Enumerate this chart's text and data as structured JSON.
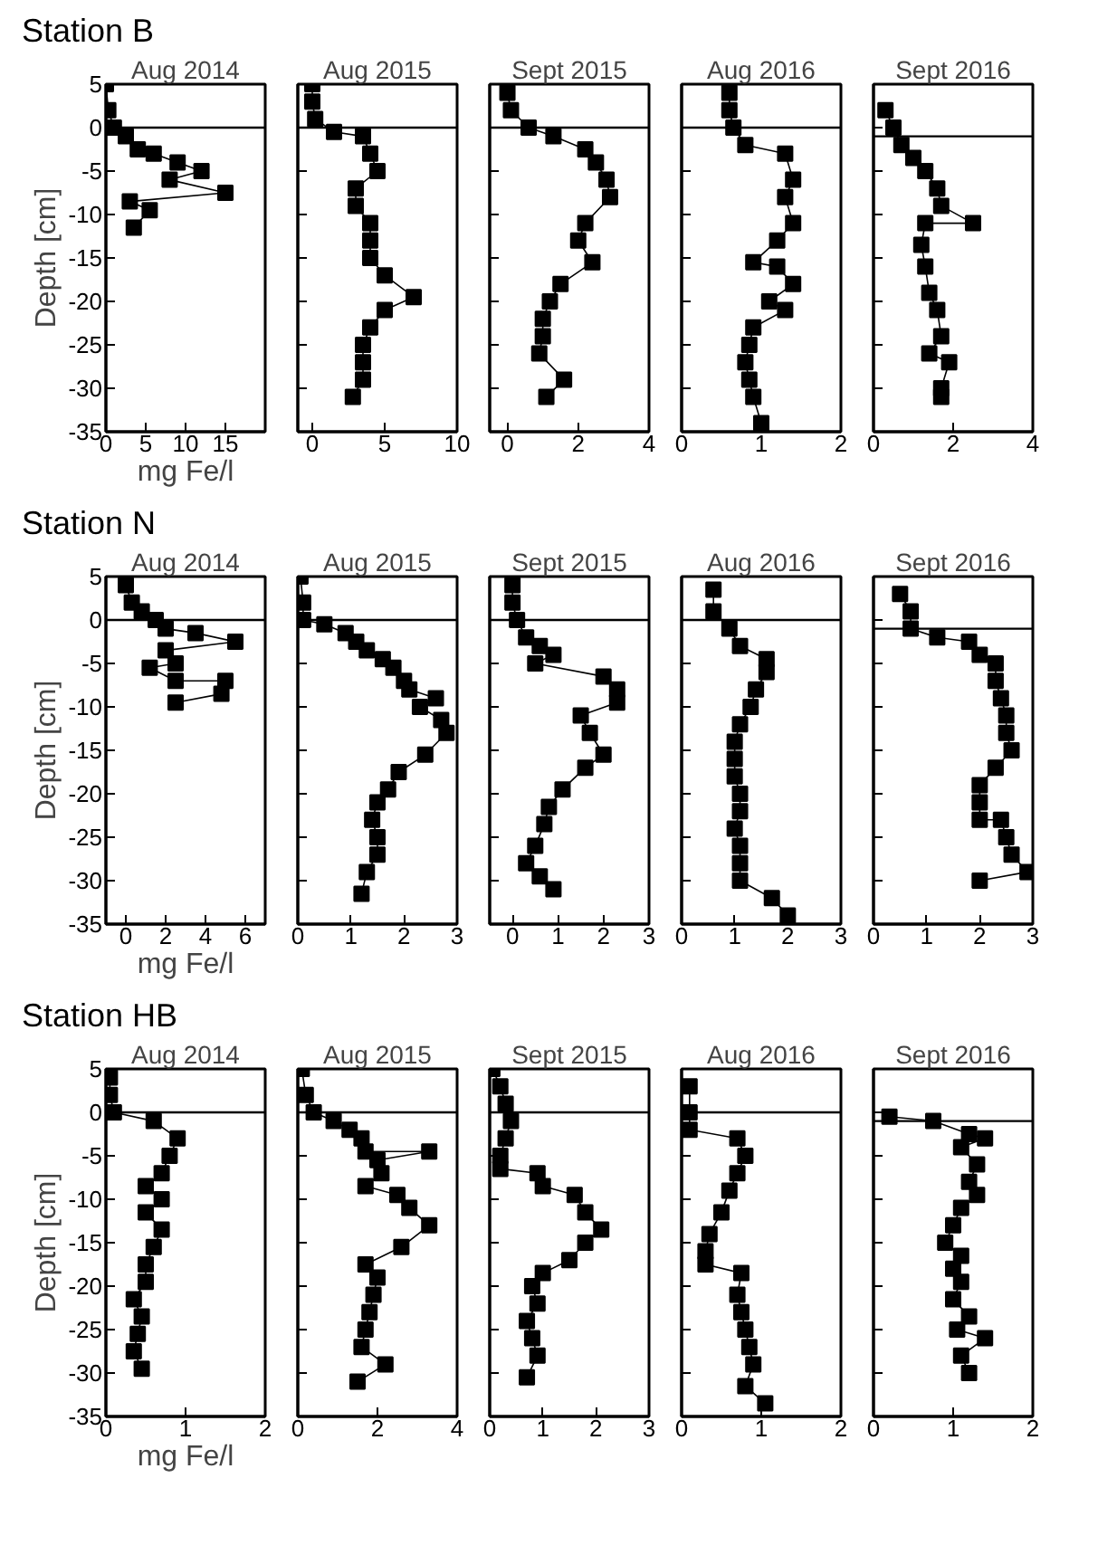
{
  "chart_data": [
    {
      "type": "line",
      "title": "Aug 2014",
      "annotations": [
        "Station B"
      ],
      "ylabel": "Depth [cm]",
      "xlabel": "mg Fe/l",
      "marker": "square",
      "xlim": [
        0,
        20
      ],
      "xticks": [
        0,
        5,
        10,
        15
      ],
      "ylim": [
        -35,
        5
      ],
      "yticks": [
        5,
        0,
        -5,
        -10,
        -15,
        -20,
        -25,
        -30,
        -35
      ],
      "ref_lines": [
        {
          "axis": "y",
          "value": 0
        }
      ],
      "series": [
        {
          "color": "#000000",
          "x": [
            0,
            0.3,
            1,
            2.5,
            4,
            6,
            9,
            12,
            8,
            15,
            3,
            5.5,
            3.5
          ],
          "values": [
            5,
            2,
            0,
            -1,
            -2.5,
            -3,
            -4,
            -5,
            -6,
            -7.5,
            -8.5,
            -9.5,
            -11.5
          ]
        }
      ]
    },
    {
      "type": "line",
      "title": "Aug 2015",
      "marker": "square",
      "tick_labels": "x",
      "xlim": [
        -1,
        10
      ],
      "xticks": [
        0,
        5,
        10
      ],
      "ylim": [
        -35,
        5
      ],
      "yticks": [
        5,
        0,
        -5,
        -10,
        -15,
        -20,
        -25,
        -30,
        -35
      ],
      "ref_lines": [
        {
          "axis": "y",
          "value": 0
        }
      ],
      "series": [
        {
          "color": "#000000",
          "x": [
            0,
            0,
            0.2,
            1.5,
            3.5,
            4,
            4.5,
            3,
            3,
            4,
            4,
            4,
            5,
            7,
            5,
            4,
            3.5,
            3.5,
            3.5,
            2.8
          ],
          "values": [
            5,
            3,
            1,
            -0.5,
            -1,
            -3,
            -5,
            -7,
            -9,
            -11,
            -13,
            -15,
            -17,
            -19.5,
            -21,
            -23,
            -25,
            -27,
            -29,
            -31
          ]
        }
      ]
    },
    {
      "type": "line",
      "title": "Sept 2015",
      "marker": "square",
      "tick_labels": "x",
      "xlim": [
        -0.5,
        4
      ],
      "xticks": [
        0,
        2,
        4
      ],
      "ylim": [
        -35,
        5
      ],
      "yticks": [
        5,
        0,
        -5,
        -10,
        -15,
        -20,
        -25,
        -30,
        -35
      ],
      "ref_lines": [
        {
          "axis": "y",
          "value": 0
        }
      ],
      "series": [
        {
          "color": "#000000",
          "x": [
            0,
            0.1,
            0.6,
            1.3,
            2.2,
            2.5,
            2.8,
            2.9,
            2.2,
            2,
            2.4,
            1.5,
            1.2,
            1,
            1,
            0.9,
            1.6,
            1.1
          ],
          "values": [
            4,
            2,
            0,
            -1,
            -2.5,
            -4,
            -6,
            -8,
            -11,
            -13,
            -15.5,
            -18,
            -20,
            -22,
            -24,
            -26,
            -29,
            -31
          ]
        }
      ]
    },
    {
      "type": "line",
      "title": "Aug 2016",
      "marker": "square",
      "tick_labels": "x",
      "xlim": [
        0,
        2
      ],
      "xticks": [
        0,
        1,
        2
      ],
      "ylim": [
        -35,
        5
      ],
      "yticks": [
        5,
        0,
        -5,
        -10,
        -15,
        -20,
        -25,
        -30,
        -35
      ],
      "ref_lines": [
        {
          "axis": "y",
          "value": 0
        }
      ],
      "series": [
        {
          "color": "#000000",
          "x": [
            0.6,
            0.6,
            0.65,
            0.8,
            1.3,
            1.4,
            1.3,
            1.4,
            1.2,
            0.9,
            1.2,
            1.4,
            1.1,
            1.3,
            0.9,
            0.85,
            0.8,
            0.85,
            0.9,
            1
          ],
          "values": [
            4,
            2,
            0,
            -2,
            -3,
            -6,
            -8,
            -11,
            -13,
            -15.5,
            -16,
            -18,
            -20,
            -21,
            -23,
            -25,
            -27,
            -29,
            -31,
            -34
          ]
        }
      ]
    },
    {
      "type": "line",
      "title": "Sept 2016",
      "marker": "square",
      "tick_labels": "x",
      "xlim": [
        0,
        4
      ],
      "xticks": [
        0,
        2,
        4
      ],
      "ylim": [
        -35,
        5
      ],
      "yticks": [
        5,
        0,
        -5,
        -10,
        -15,
        -20,
        -25,
        -30,
        -35
      ],
      "ref_lines": [
        {
          "axis": "y",
          "value": -1
        }
      ],
      "series": [
        {
          "color": "#000000",
          "x": [
            0.3,
            0.5,
            0.7,
            1,
            1.3,
            1.6,
            1.7,
            2.5,
            1.3,
            1.2,
            1.3,
            1.4,
            1.6,
            1.7,
            1.4,
            1.9,
            1.7,
            1.7
          ],
          "values": [
            2,
            0,
            -2,
            -3.5,
            -5,
            -7,
            -9,
            -11,
            -11,
            -13.5,
            -16,
            -19,
            -21,
            -24,
            -26,
            -27,
            -30,
            -31
          ]
        }
      ]
    },
    {
      "type": "line",
      "title": "Aug 2014",
      "annotations": [
        "Station N"
      ],
      "ylabel": "Depth [cm]",
      "xlabel": "mg Fe/l",
      "marker": "square",
      "xlim": [
        -1,
        7
      ],
      "xticks": [
        0,
        2,
        4,
        6
      ],
      "ylim": [
        -35,
        5
      ],
      "yticks": [
        5,
        0,
        -5,
        -10,
        -15,
        -20,
        -25,
        -30,
        -35
      ],
      "ref_lines": [
        {
          "axis": "y",
          "value": 0
        }
      ],
      "series": [
        {
          "color": "#000000",
          "x": [
            0,
            0.3,
            0.8,
            1.5,
            2,
            3.5,
            5.5,
            2,
            2.5,
            1.2,
            2.5,
            5,
            4.8,
            2.5
          ],
          "values": [
            4,
            2,
            1,
            0,
            -1,
            -1.5,
            -2.5,
            -3.5,
            -5,
            -5.5,
            -7,
            -7,
            -8.5,
            -9.5
          ]
        }
      ]
    },
    {
      "type": "line",
      "title": "Aug 2015",
      "marker": "square",
      "tick_labels": "x",
      "xlim": [
        0,
        3
      ],
      "xticks": [
        0,
        1,
        2,
        3
      ],
      "ylim": [
        -35,
        5
      ],
      "yticks": [
        5,
        0,
        -5,
        -10,
        -15,
        -20,
        -25,
        -30,
        -35
      ],
      "ref_lines": [
        {
          "axis": "y",
          "value": 0
        }
      ],
      "series": [
        {
          "color": "#000000",
          "x": [
            0.05,
            0.1,
            0.1,
            0.5,
            0.9,
            1.1,
            1.3,
            1.6,
            1.8,
            2,
            2.1,
            2.6,
            2.3,
            2.7,
            2.8,
            2.4,
            1.9,
            1.7,
            1.5,
            1.4,
            1.5,
            1.5,
            1.3,
            1.2
          ],
          "values": [
            5,
            2,
            0,
            -0.5,
            -1.5,
            -2.5,
            -3.5,
            -4.5,
            -5.5,
            -7,
            -8,
            -9,
            -10,
            -11.5,
            -13,
            -15.5,
            -17.5,
            -19.5,
            -21,
            -23,
            -25,
            -27,
            -29,
            -31.5
          ]
        }
      ]
    },
    {
      "type": "line",
      "title": "Sept 2015",
      "marker": "square",
      "tick_labels": "x",
      "xlim": [
        -0.5,
        3
      ],
      "xticks": [
        0,
        1,
        2,
        3
      ],
      "ylim": [
        -35,
        5
      ],
      "yticks": [
        5,
        0,
        -5,
        -10,
        -15,
        -20,
        -25,
        -30,
        -35
      ],
      "ref_lines": [
        {
          "axis": "y",
          "value": 0
        }
      ],
      "series": [
        {
          "color": "#000000",
          "x": [
            0,
            0,
            0.1,
            0.3,
            0.6,
            0.9,
            0.5,
            2,
            2.3,
            2.3,
            1.5,
            1.7,
            2,
            1.6,
            1.1,
            0.8,
            0.7,
            0.5,
            0.3,
            0.6,
            0.9
          ],
          "values": [
            4,
            2,
            0,
            -2,
            -3,
            -4,
            -5,
            -6.5,
            -8,
            -9.5,
            -11,
            -13,
            -15.5,
            -17,
            -19.5,
            -21.5,
            -23.5,
            -26,
            -28,
            -29.5,
            -31
          ]
        }
      ]
    },
    {
      "type": "line",
      "title": "Aug 2016",
      "marker": "square",
      "tick_labels": "x",
      "xlim": [
        0,
        3
      ],
      "xticks": [
        0,
        1,
        2,
        3
      ],
      "ylim": [
        -35,
        5
      ],
      "yticks": [
        5,
        0,
        -5,
        -10,
        -15,
        -20,
        -25,
        -30,
        -35
      ],
      "ref_lines": [
        {
          "axis": "y",
          "value": 0
        }
      ],
      "series": [
        {
          "color": "#000000",
          "x": [
            0.6,
            0.6,
            0.9,
            1.1,
            1.6,
            1.6,
            1.4,
            1.3,
            1.1,
            1,
            1,
            1,
            1.1,
            1.1,
            1,
            1.1,
            1.1,
            1.1,
            1.7,
            2
          ],
          "values": [
            3.5,
            1,
            -1,
            -3,
            -4.5,
            -6,
            -8,
            -10,
            -12,
            -14,
            -16,
            -18,
            -20,
            -22,
            -24,
            -26,
            -28,
            -30,
            -32,
            -34
          ]
        }
      ]
    },
    {
      "type": "line",
      "title": "Sept 2016",
      "marker": "square",
      "tick_labels": "x",
      "xlim": [
        0,
        3
      ],
      "xticks": [
        0,
        1,
        2,
        3
      ],
      "ylim": [
        -35,
        5
      ],
      "yticks": [
        5,
        0,
        -5,
        -10,
        -15,
        -20,
        -25,
        -30,
        -35
      ],
      "ref_lines": [
        {
          "axis": "y",
          "value": -1
        }
      ],
      "series": [
        {
          "color": "#000000",
          "x": [
            0.5,
            0.7,
            0.7,
            1.2,
            1.8,
            2,
            2.3,
            2.3,
            2.4,
            2.5,
            2.5,
            2.6,
            2.3,
            2,
            2,
            2,
            2.4,
            2.5,
            2.6,
            2.9,
            2
          ],
          "values": [
            3,
            1,
            -1,
            -2,
            -2.5,
            -4,
            -5,
            -7,
            -9,
            -11,
            -13,
            -15,
            -17,
            -19,
            -21,
            -23,
            -23,
            -25,
            -27,
            -29,
            -30
          ]
        }
      ]
    },
    {
      "type": "line",
      "title": "Aug 2014",
      "annotations": [
        "Station HB"
      ],
      "ylabel": "Depth [cm]",
      "xlabel": "mg Fe/l",
      "marker": "square",
      "xlim": [
        0,
        2
      ],
      "xticks": [
        0,
        1,
        2
      ],
      "ylim": [
        -35,
        5
      ],
      "yticks": [
        5,
        0,
        -5,
        -10,
        -15,
        -20,
        -25,
        -30,
        -35
      ],
      "ref_lines": [
        {
          "axis": "y",
          "value": 0
        }
      ],
      "series": [
        {
          "color": "#000000",
          "x": [
            0.05,
            0.05,
            0.1,
            0.6,
            0.9,
            0.8,
            0.7,
            0.5,
            0.7,
            0.5,
            0.7,
            0.6,
            0.5,
            0.5,
            0.35,
            0.45,
            0.4,
            0.35,
            0.45
          ],
          "values": [
            4,
            2,
            0,
            -1,
            -3,
            -5,
            -7,
            -8.5,
            -10,
            -11.5,
            -13.5,
            -15.5,
            -17.5,
            -19.5,
            -21.5,
            -23.5,
            -25.5,
            -27.5,
            -29.5
          ]
        }
      ]
    },
    {
      "type": "line",
      "title": "Aug 2015",
      "marker": "square",
      "tick_labels": "x",
      "xlim": [
        0,
        4
      ],
      "xticks": [
        0,
        2,
        4
      ],
      "ylim": [
        -35,
        5
      ],
      "yticks": [
        5,
        0,
        -5,
        -10,
        -15,
        -20,
        -25,
        -30,
        -35
      ],
      "ref_lines": [
        {
          "axis": "y",
          "value": 0
        }
      ],
      "series": [
        {
          "color": "#000000",
          "x": [
            0.1,
            0.2,
            0.4,
            0.9,
            1.3,
            1.6,
            1.7,
            3.3,
            2,
            2.1,
            1.7,
            2.5,
            2.8,
            3.3,
            2.6,
            1.7,
            2,
            1.9,
            1.8,
            1.7,
            1.6,
            2.2,
            1.5
          ],
          "values": [
            5,
            2,
            0,
            -1,
            -2,
            -3,
            -4.5,
            -4.5,
            -5.5,
            -7,
            -8.5,
            -9.5,
            -11,
            -13,
            -15.5,
            -17.5,
            -19,
            -21,
            -23,
            -25,
            -27,
            -29,
            -31
          ]
        }
      ]
    },
    {
      "type": "line",
      "title": "Sept 2015",
      "marker": "square",
      "tick_labels": "x",
      "xlim": [
        0,
        3
      ],
      "xticks": [
        0,
        1,
        2,
        3
      ],
      "ylim": [
        -35,
        5
      ],
      "yticks": [
        5,
        0,
        -5,
        -10,
        -15,
        -20,
        -25,
        -30,
        -35
      ],
      "ref_lines": [
        {
          "axis": "y",
          "value": 0
        }
      ],
      "series": [
        {
          "color": "#000000",
          "x": [
            0.05,
            0.2,
            0.3,
            0.4,
            0.3,
            0.2,
            0.2,
            0.9,
            1,
            1.6,
            1.8,
            2.1,
            1.8,
            1.5,
            1,
            0.8,
            0.9,
            0.7,
            0.8,
            0.9,
            0.7
          ],
          "values": [
            5,
            3,
            1,
            -1,
            -3,
            -5,
            -6.5,
            -7,
            -8.5,
            -9.5,
            -11.5,
            -13.5,
            -15,
            -17,
            -18.5,
            -20,
            -22,
            -24,
            -26,
            -28,
            -30.5
          ]
        }
      ]
    },
    {
      "type": "line",
      "title": "Aug 2016",
      "marker": "square",
      "tick_labels": "x",
      "xlim": [
        0,
        2
      ],
      "xticks": [
        0,
        1,
        2
      ],
      "ylim": [
        -35,
        5
      ],
      "yticks": [
        5,
        0,
        -5,
        -10,
        -15,
        -20,
        -25,
        -30,
        -35
      ],
      "ref_lines": [
        {
          "axis": "y",
          "value": 0
        }
      ],
      "series": [
        {
          "color": "#000000",
          "x": [
            0.1,
            0.1,
            0.1,
            0.7,
            0.8,
            0.7,
            0.6,
            0.5,
            0.35,
            0.3,
            0.3,
            0.75,
            0.7,
            0.75,
            0.8,
            0.85,
            0.9,
            0.8,
            1.05
          ],
          "values": [
            3,
            0,
            -2,
            -3,
            -5,
            -7,
            -9,
            -11.5,
            -14,
            -16,
            -17.5,
            -18.5,
            -21,
            -23,
            -25,
            -27,
            -29,
            -31.5,
            -33.5
          ]
        }
      ]
    },
    {
      "type": "line",
      "title": "Sept 2016",
      "marker": "square",
      "tick_labels": "x",
      "xlim": [
        0,
        2
      ],
      "xticks": [
        0,
        1,
        2
      ],
      "ylim": [
        -35,
        5
      ],
      "yticks": [
        5,
        0,
        -5,
        -10,
        -15,
        -20,
        -25,
        -30,
        -35
      ],
      "ref_lines": [
        {
          "axis": "y",
          "value": -1
        }
      ],
      "series": [
        {
          "color": "#000000",
          "x": [
            0.2,
            0.75,
            1.2,
            1.4,
            1.1,
            1.3,
            1.2,
            1.3,
            1.1,
            1,
            0.9,
            1.1,
            1,
            1.1,
            1,
            1.2,
            1.05,
            1.4,
            1.1,
            1.2
          ],
          "values": [
            -0.5,
            -1,
            -2.5,
            -3,
            -4,
            -6,
            -8,
            -9.5,
            -11,
            -13,
            -15,
            -16.5,
            -18,
            -19.5,
            -21.5,
            -23.5,
            -25,
            -26,
            -28,
            -30
          ]
        }
      ]
    }
  ]
}
